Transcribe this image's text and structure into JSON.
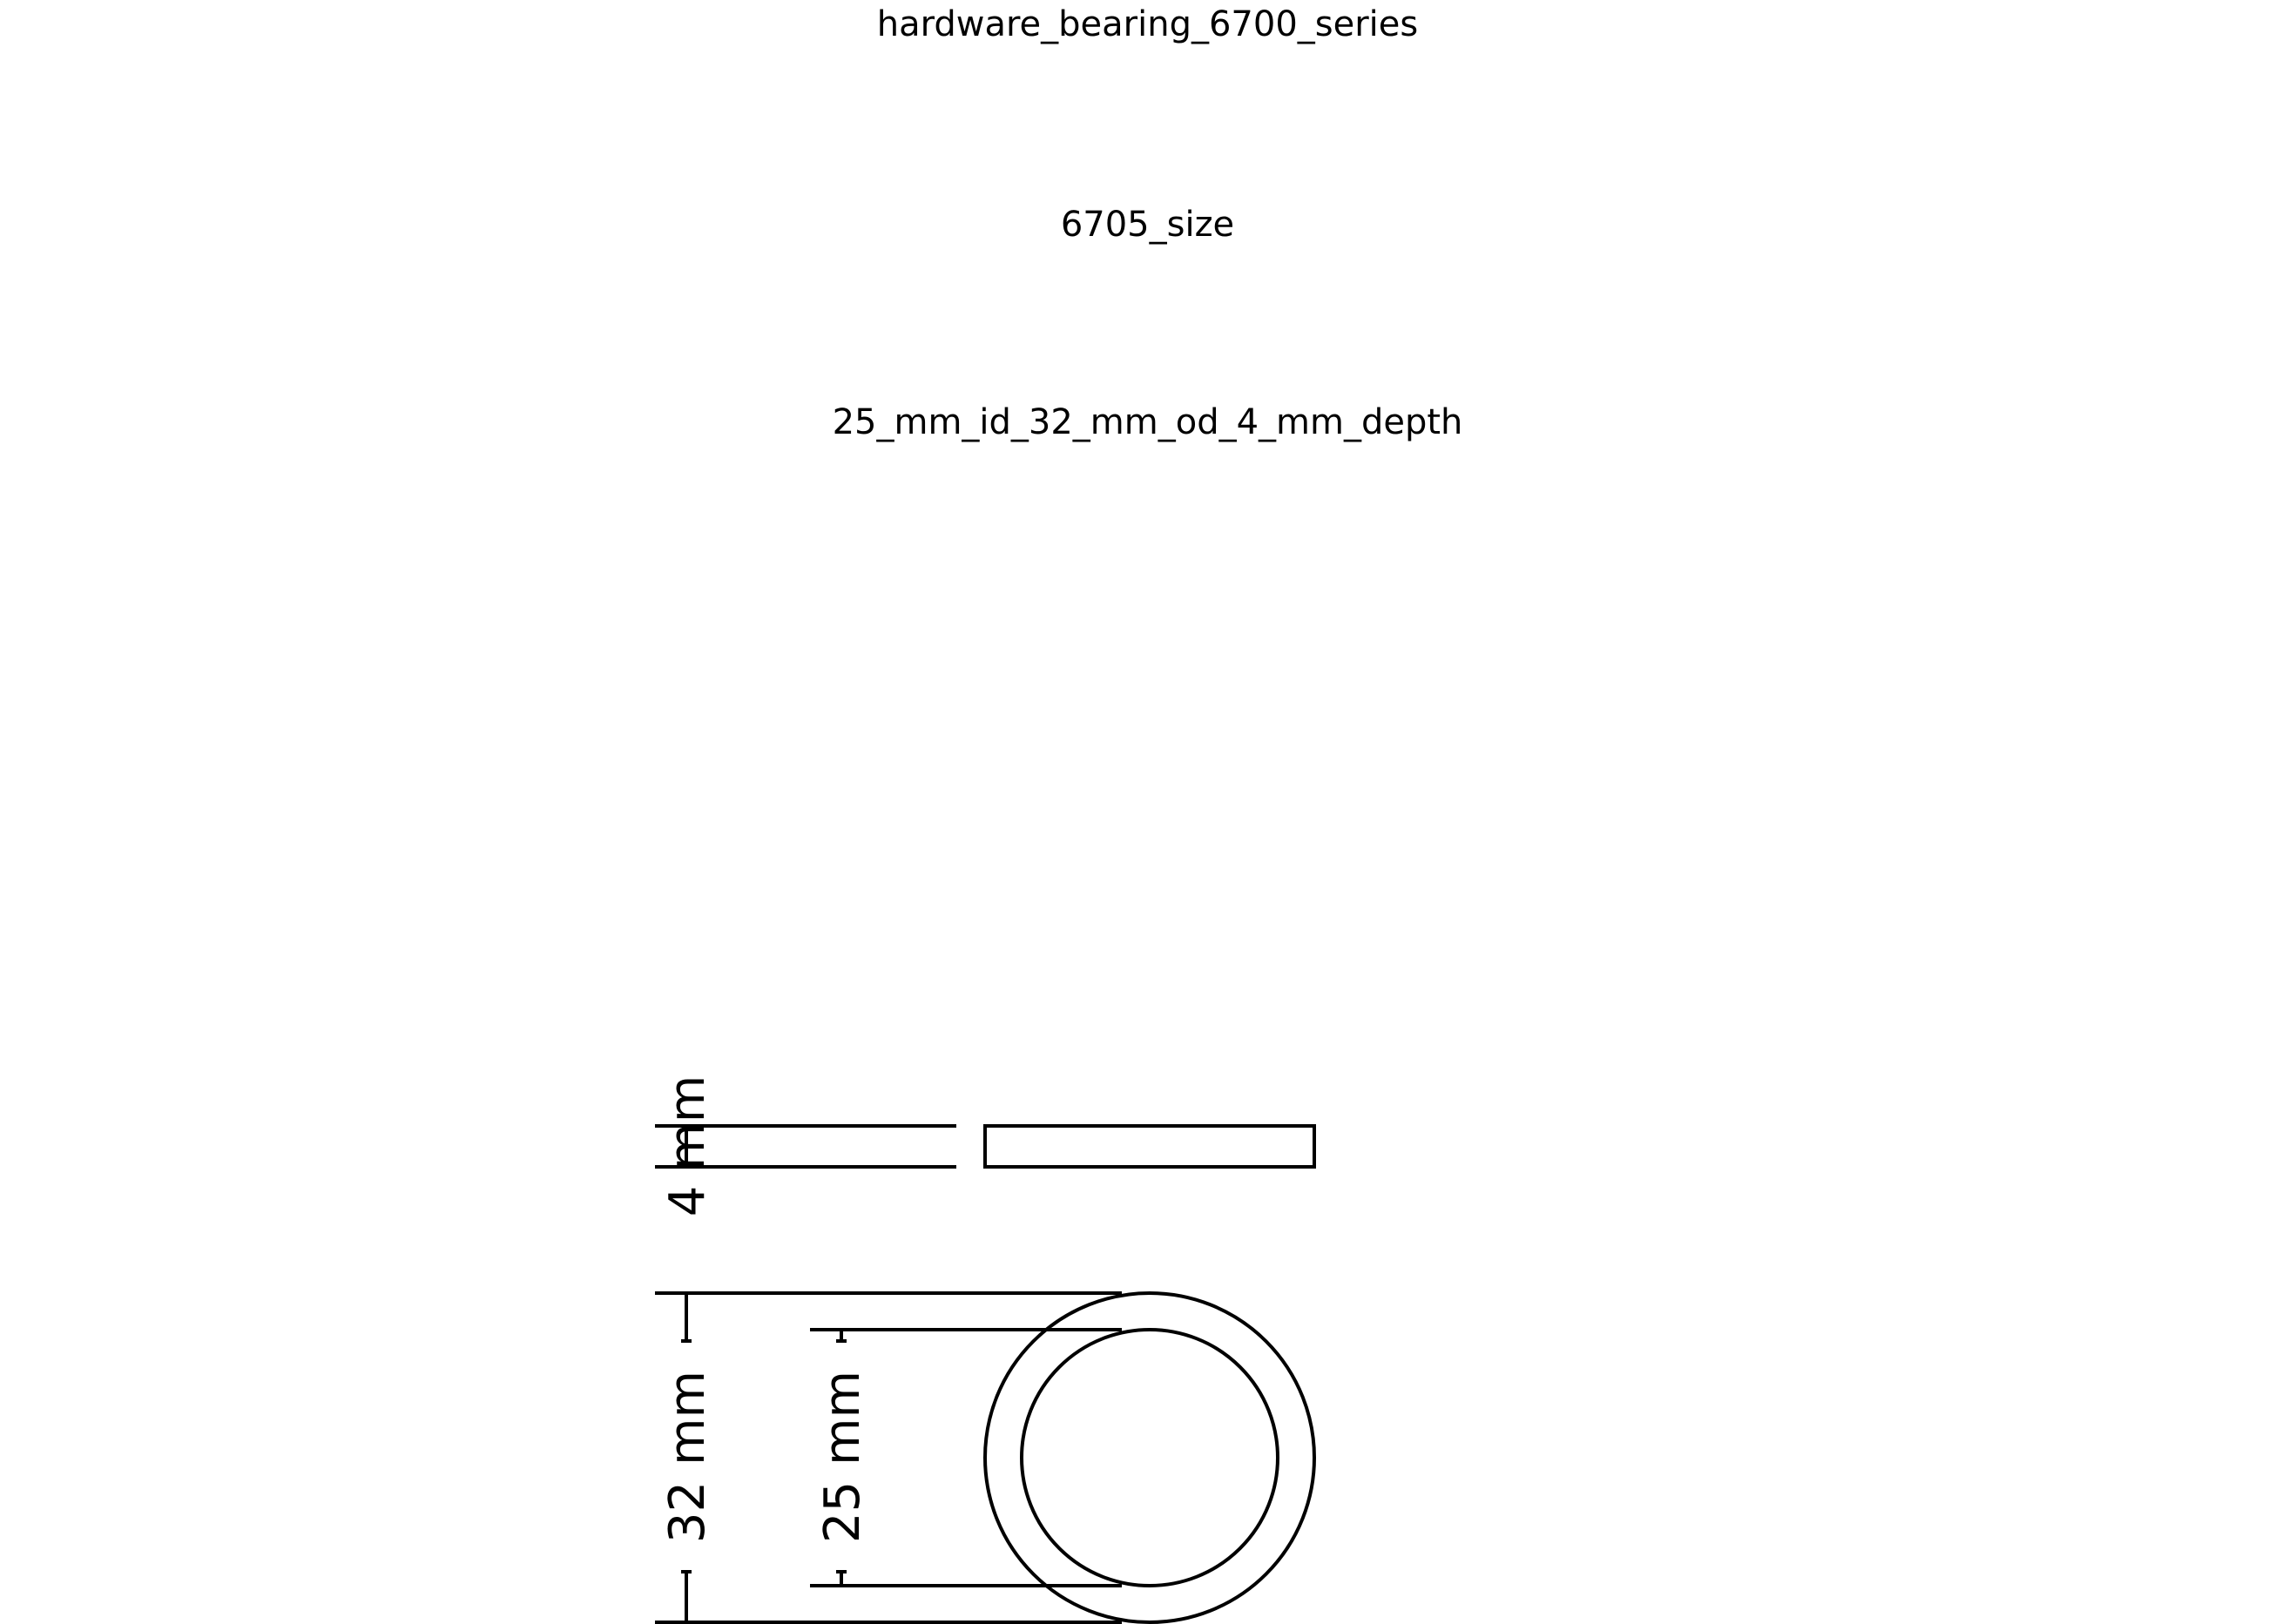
{
  "title": {
    "line1": "hardware_bearing_6700_series",
    "line2": "6705_size",
    "line3": "25_mm_id_32_mm_od_4_mm_depth"
  },
  "dimensions": {
    "depth_label": "4 mm",
    "outer_diameter_label": "32 mm",
    "inner_diameter_label": "25 mm"
  },
  "colors": {
    "stroke": "#000000",
    "background": "#ffffff"
  }
}
